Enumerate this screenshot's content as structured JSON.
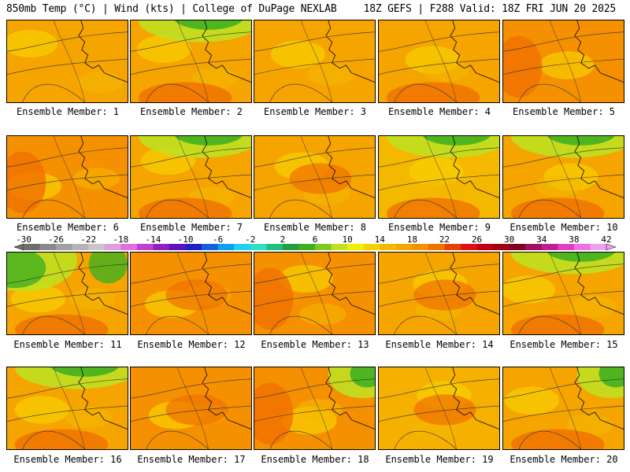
{
  "header": {
    "left": "850mb Temp (°C) | Wind (kts) | College of DuPage NEXLAB",
    "right": "18Z GEFS | F288 Valid: 18Z FRI JUN 20 2025"
  },
  "panels": [
    {
      "label": "Ensemble Member: 1",
      "base": "#f5a400",
      "cool": "none",
      "warm": "none"
    },
    {
      "label": "Ensemble Member: 2",
      "base": "#f5a400",
      "cool": "north",
      "warm": "south"
    },
    {
      "label": "Ensemble Member: 3",
      "base": "#f5a400",
      "cool": "none",
      "warm": "none"
    },
    {
      "label": "Ensemble Member: 4",
      "base": "#f5a400",
      "cool": "none",
      "warm": "south"
    },
    {
      "label": "Ensemble Member: 5",
      "base": "#f59000",
      "cool": "none",
      "warm": "west"
    },
    {
      "label": "Ensemble Member: 6",
      "base": "#f59000",
      "cool": "none",
      "warm": "west"
    },
    {
      "label": "Ensemble Member: 7",
      "base": "#f5a400",
      "cool": "north",
      "warm": "south"
    },
    {
      "label": "Ensemble Member: 8",
      "base": "#f5a400",
      "cool": "none",
      "warm": "center"
    },
    {
      "label": "Ensemble Member: 9",
      "base": "#f5b800",
      "cool": "north",
      "warm": "south"
    },
    {
      "label": "Ensemble Member: 10",
      "base": "#f5a400",
      "cool": "north",
      "warm": "south"
    },
    {
      "label": "Ensemble Member: 11",
      "base": "#f5a400",
      "cool": "northwest",
      "warm": "south"
    },
    {
      "label": "Ensemble Member: 12",
      "base": "#f59000",
      "cool": "none",
      "warm": "center"
    },
    {
      "label": "Ensemble Member: 13",
      "base": "#f59000",
      "cool": "none",
      "warm": "west"
    },
    {
      "label": "Ensemble Member: 14",
      "base": "#f5a400",
      "cool": "none",
      "warm": "center"
    },
    {
      "label": "Ensemble Member: 15",
      "base": "#f5a400",
      "cool": "north",
      "warm": "south"
    },
    {
      "label": "Ensemble Member: 16",
      "base": "#f5a400",
      "cool": "north",
      "warm": "south"
    },
    {
      "label": "Ensemble Member: 17",
      "base": "#f59000",
      "cool": "none",
      "warm": "center"
    },
    {
      "label": "Ensemble Member: 18",
      "base": "#f59000",
      "cool": "northeast",
      "warm": "west"
    },
    {
      "label": "Ensemble Member: 19",
      "base": "#f5b000",
      "cool": "none",
      "warm": "center"
    },
    {
      "label": "Ensemble Member: 20",
      "base": "#f5a400",
      "cool": "northeast",
      "warm": "south"
    }
  ],
  "colorbar": {
    "ticks": [
      "-30",
      "-26",
      "-22",
      "-18",
      "-14",
      "-10",
      "-6",
      "-2",
      "2",
      "6",
      "10",
      "14",
      "18",
      "22",
      "26",
      "30",
      "34",
      "38",
      "42"
    ],
    "colors": [
      "#6e6e6e",
      "#8a8a8a",
      "#a0a0a0",
      "#b4b4b4",
      "#c8c8c8",
      "#dca0dc",
      "#e070e0",
      "#c040d0",
      "#9020c0",
      "#6010c0",
      "#2020c0",
      "#1060e0",
      "#10a0f0",
      "#20d0f0",
      "#30e0c0",
      "#20c080",
      "#20a040",
      "#40b020",
      "#80c820",
      "#c0e020",
      "#f0f000",
      "#f8d000",
      "#f5b800",
      "#f5a400",
      "#f59000",
      "#f07000",
      "#e84000",
      "#e01010",
      "#c00010",
      "#a00010",
      "#800020",
      "#a01060",
      "#c02090",
      "#e040c0",
      "#f070e0",
      "#f0a0f0"
    ]
  }
}
